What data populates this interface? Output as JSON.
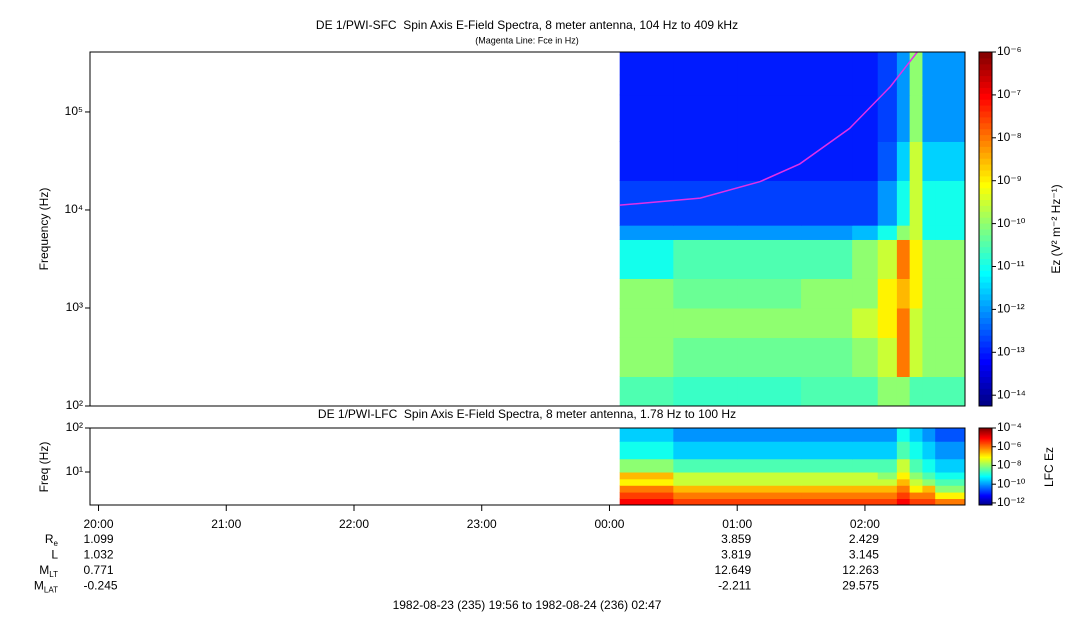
{
  "chart_data": [
    {
      "type": "heatmap",
      "title": "DE 1/PWI-SFC  Spin Axis E-Field Spectra, 8 meter antenna, 104 Hz to 409 kHz",
      "subtitle": "(Magenta Line: Fce in Hz)",
      "y_label": "Frequency (Hz)",
      "colorbar_label": "Ez (V² m⁻² Hz⁻¹)",
      "log_y": true,
      "xlim": [
        19.9333,
        26.7833
      ],
      "ylim": [
        100,
        409000
      ],
      "yticks": [
        {
          "value": 100,
          "label": "10²"
        },
        {
          "value": 1000,
          "label": "10³"
        },
        {
          "value": 10000,
          "label": "10⁴"
        },
        {
          "value": 100000,
          "label": "10⁵"
        }
      ],
      "zlim": [
        5.6e-15,
        1e-06
      ],
      "zticks": [
        {
          "value": 1e-06,
          "label": "10⁻⁶"
        },
        {
          "value": 1e-07,
          "label": "10⁻⁷"
        },
        {
          "value": 1e-08,
          "label": "10⁻⁸"
        },
        {
          "value": 1e-09,
          "label": "10⁻⁹"
        },
        {
          "value": 1e-10,
          "label": "10⁻¹⁰"
        },
        {
          "value": 1e-11,
          "label": "10⁻¹¹"
        },
        {
          "value": 1e-12,
          "label": "10⁻¹²"
        },
        {
          "value": 1e-13,
          "label": "10⁻¹³"
        },
        {
          "value": 1e-14,
          "label": "10⁻¹⁴"
        }
      ],
      "x": [
        24.08,
        24.5,
        25.0,
        25.5,
        25.9,
        26.1,
        26.25,
        26.35,
        26.45,
        26.55,
        26.7833
      ],
      "y": [
        100,
        200,
        500,
        1000,
        2000,
        5000,
        7000,
        20000,
        50000,
        150000,
        409000
      ],
      "z": [
        [
          3e-11,
          2e-11,
          2e-11,
          3e-11,
          3e-11,
          1e-10,
          1e-10,
          3e-11,
          3e-11,
          3e-11
        ],
        [
          1e-10,
          5e-11,
          5e-11,
          5e-11,
          1e-10,
          3e-10,
          1e-08,
          3e-10,
          1e-10,
          1e-10
        ],
        [
          1e-10,
          1e-10,
          1e-10,
          1e-10,
          3e-10,
          1e-09,
          1e-08,
          3e-10,
          1e-10,
          1e-10
        ],
        [
          1e-10,
          5e-11,
          5e-11,
          1e-10,
          1e-10,
          1e-09,
          3e-09,
          1e-09,
          1e-10,
          1e-10
        ],
        [
          1e-11,
          3e-11,
          3e-11,
          3e-11,
          1e-10,
          3e-10,
          1e-08,
          1e-09,
          1e-10,
          1e-10
        ],
        [
          1e-12,
          1e-12,
          1e-12,
          1e-12,
          2e-12,
          1e-11,
          1e-10,
          3e-10,
          1e-11,
          1e-11
        ],
        [
          2e-13,
          2e-13,
          2e-13,
          2e-13,
          2e-13,
          1e-12,
          1e-11,
          3e-10,
          1e-11,
          1e-11
        ],
        [
          1e-13,
          1e-13,
          1e-13,
          1e-13,
          1e-13,
          3e-13,
          3e-12,
          3e-10,
          3e-12,
          3e-12
        ],
        [
          1e-13,
          1e-13,
          1e-13,
          1e-13,
          1e-13,
          2e-13,
          1e-12,
          1e-10,
          1e-12,
          1e-12
        ],
        [
          1e-13,
          1e-13,
          1e-13,
          1e-13,
          1e-13,
          2e-13,
          1e-12,
          1e-10,
          1e-12,
          1e-12
        ]
      ],
      "line": {
        "color": "#e030e8",
        "x": [
          24.08,
          24.71,
          25.18,
          25.49,
          25.88,
          26.2,
          26.41
        ],
        "values": [
          11200,
          13200,
          19500,
          29500,
          68000,
          182000,
          409000
        ]
      }
    },
    {
      "type": "heatmap",
      "title": "DE 1/PWI-LFC  Spin Axis E-Field Spectra, 8 meter antenna, 1.78 Hz to 100 Hz",
      "y_label": "Freq (Hz)",
      "colorbar_label": "LFC Ez",
      "log_y": true,
      "xlim": [
        19.9333,
        26.7833
      ],
      "xticks": [
        {
          "value": 20,
          "label": "20:00"
        },
        {
          "value": 21,
          "label": "21:00"
        },
        {
          "value": 22,
          "label": "22:00"
        },
        {
          "value": 23,
          "label": "23:00"
        },
        {
          "value": 24,
          "label": "00:00"
        },
        {
          "value": 25,
          "label": "01:00"
        },
        {
          "value": 26,
          "label": "02:00"
        }
      ],
      "ylim": [
        1.78,
        100
      ],
      "yticks": [
        {
          "value": 10,
          "label": "10¹"
        },
        {
          "value": 100,
          "label": "10²"
        }
      ],
      "zlim": [
        6e-13,
        0.0001
      ],
      "zticks": [
        {
          "value": 0.0001,
          "label": "10⁻⁴"
        },
        {
          "value": 1e-06,
          "label": "10⁻⁶"
        },
        {
          "value": 1e-08,
          "label": "10⁻⁸"
        },
        {
          "value": 1e-10,
          "label": "10⁻¹⁰"
        },
        {
          "value": 1e-12,
          "label": "10⁻¹²"
        }
      ],
      "x": [
        24.08,
        24.5,
        25.0,
        25.5,
        25.9,
        26.1,
        26.25,
        26.35,
        26.45,
        26.55,
        26.7833
      ],
      "y": [
        1.78,
        2.5,
        3.5,
        5,
        7,
        10,
        20,
        50,
        100
      ],
      "z": [
        [
          1e-05,
          3e-06,
          3e-06,
          3e-06,
          3e-06,
          3e-06,
          1e-05,
          3e-06,
          3e-06,
          1e-06
        ],
        [
          3e-06,
          1e-06,
          1e-06,
          1e-06,
          1e-06,
          1e-06,
          3e-06,
          1e-06,
          1e-06,
          1e-07
        ],
        [
          1e-06,
          3e-07,
          3e-07,
          3e-07,
          3e-07,
          3e-07,
          1e-06,
          1e-07,
          3e-07,
          1e-08
        ],
        [
          1e-07,
          3e-08,
          3e-08,
          3e-08,
          3e-08,
          3e-08,
          3e-07,
          3e-08,
          1e-08,
          3e-09
        ],
        [
          3e-07,
          3e-08,
          3e-08,
          3e-08,
          3e-08,
          1e-08,
          1e-07,
          1e-08,
          3e-09,
          1e-09
        ],
        [
          1e-08,
          3e-09,
          3e-09,
          3e-09,
          3e-09,
          3e-09,
          3e-08,
          3e-09,
          1e-09,
          3e-10
        ],
        [
          1e-09,
          3e-10,
          3e-10,
          3e-10,
          3e-10,
          3e-10,
          3e-09,
          1e-09,
          3e-10,
          1e-10
        ],
        [
          3e-10,
          1e-10,
          1e-10,
          1e-10,
          1e-10,
          1e-10,
          1e-09,
          3e-10,
          1e-10,
          3e-11
        ]
      ]
    }
  ],
  "ephemeris": [
    {
      "label": "R",
      "sub": "e",
      "values": [
        1.099,
        3.859,
        2.429
      ]
    },
    {
      "label": "L",
      "values": [
        1.032,
        3.819,
        3.145
      ]
    },
    {
      "label": "M",
      "sub": "LT",
      "values": [
        0.771,
        12.649,
        12.263
      ]
    },
    {
      "label": "M",
      "sub": "LAT",
      "values": [
        -0.245,
        -2.211,
        29.575
      ]
    }
  ],
  "caption": "1982-08-23 (235) 19:56 to 1982-08-24 (236) 02:47"
}
